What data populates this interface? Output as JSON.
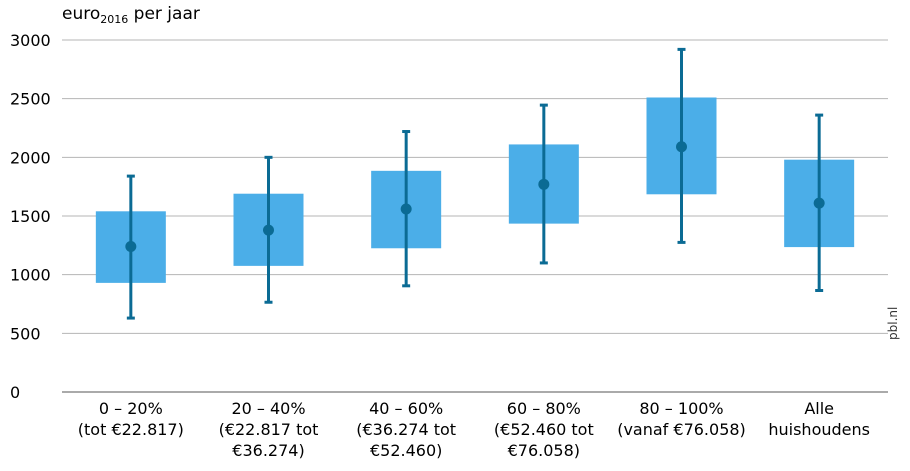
{
  "ylabel": {
    "main": "euro",
    "sub": "2016",
    "rest": " per jaar"
  },
  "credit": "pbl.nl",
  "chart_data": {
    "type": "box",
    "ylim": [
      0,
      3000
    ],
    "yticks": [
      0,
      500,
      1000,
      1500,
      2000,
      2500,
      3000
    ],
    "grid": true,
    "colors": {
      "box": "#4baee8",
      "whisker": "#0b6b94",
      "grid": "#b5b5b5",
      "axis": "#555555"
    },
    "categories": [
      {
        "lines": [
          "0 – 20%",
          "(tot €22.817)"
        ],
        "q1": 930,
        "q3": 1540,
        "median": 1240,
        "low": 630,
        "high": 1840
      },
      {
        "lines": [
          "20 – 40%",
          "(€22.817 tot",
          "€36.274)"
        ],
        "q1": 1075,
        "q3": 1690,
        "median": 1380,
        "low": 765,
        "high": 2000
      },
      {
        "lines": [
          "40 – 60%",
          "(€36.274 tot",
          "€52.460)"
        ],
        "q1": 1225,
        "q3": 1885,
        "median": 1560,
        "low": 905,
        "high": 2220
      },
      {
        "lines": [
          "60 – 80%",
          "(€52.460 tot",
          "€76.058)"
        ],
        "q1": 1435,
        "q3": 2110,
        "median": 1770,
        "low": 1100,
        "high": 2445
      },
      {
        "lines": [
          "80 – 100%",
          "(vanaf €76.058)"
        ],
        "q1": 1685,
        "q3": 2510,
        "median": 2090,
        "low": 1275,
        "high": 2920
      },
      {
        "lines": [
          "Alle",
          "huishoudens"
        ],
        "q1": 1235,
        "q3": 1980,
        "median": 1610,
        "low": 865,
        "high": 2360
      }
    ]
  }
}
